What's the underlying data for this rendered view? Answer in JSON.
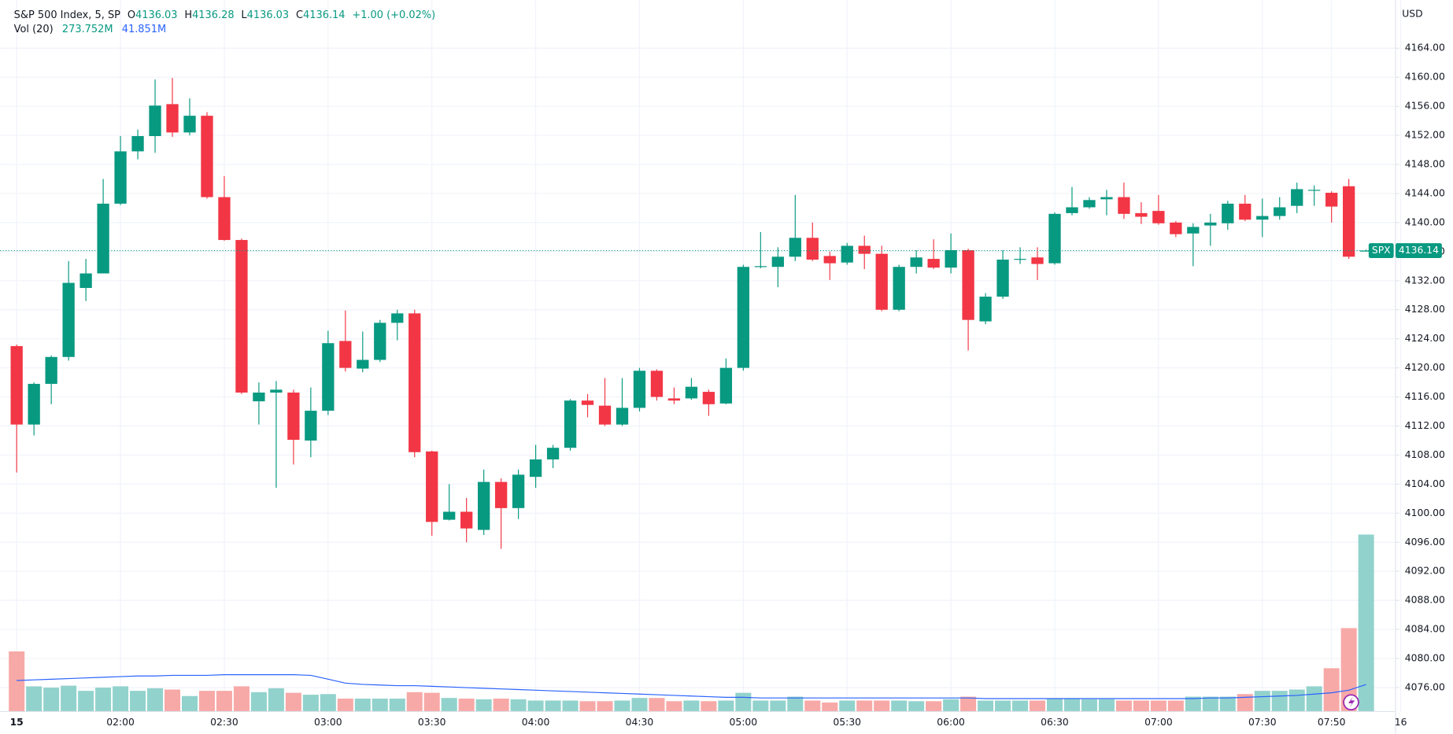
{
  "chart_data": {
    "type": "candlestick",
    "title": "S&P 500 Index, 5, SP",
    "ohlc_keys": [
      "O",
      "H",
      "L",
      "C"
    ],
    "change_label": "+1.00 (+0.02%)",
    "volume_title": "Vol (20)",
    "volume_label": "273.752M",
    "ma_label": "41.851M",
    "symbol": "SPX",
    "currency": "USD",
    "up_color": "#089981",
    "down_color": "#f23645",
    "up_volume_color": "#92d2cc",
    "down_volume_color": "#f7a9a7",
    "ma_color": "#2962ff",
    "grid": true,
    "series": {
      "open": [
        4123,
        4112.2,
        4117.8,
        4121.5,
        4131,
        4133,
        4142.6,
        4149.8,
        4151.9,
        4156.3,
        4152.4,
        4154.7,
        4143.5,
        4137.6,
        4115.4,
        4116.6,
        4116.6,
        4110,
        4114.1,
        4123.7,
        4119.9,
        4121.1,
        4126.2,
        4127.5,
        4108.5,
        4099.1,
        4100.2,
        4097.7,
        4104.3,
        4100.7,
        4105,
        4107.4,
        4109,
        4115.5,
        4114.8,
        4112.2,
        4114.5,
        4119.6,
        4115.8,
        4115.8,
        4116.7,
        4115.1,
        4120,
        4133.9,
        4133.9,
        4135.3,
        4137.9,
        4135.4,
        4134.5,
        4136.8,
        4135.7,
        4128,
        4133.9,
        4135,
        4133.8,
        4136.2,
        4126.4,
        4129.8,
        4134.9,
        4135.2,
        4134.4,
        4141.3,
        4142.1,
        4143.2,
        4143.5,
        4141.3,
        4141.6,
        4140,
        4138.5,
        4139.6,
        4139.9,
        4142.6,
        4140.4,
        4140.9,
        4142.3,
        4144.4,
        4144.1,
        4145,
        4136.03
      ],
      "high": [
        4123.2,
        4118,
        4121.7,
        4134.7,
        4135,
        4146,
        4151.9,
        4152.8,
        4159.7,
        4159.9,
        4157.1,
        4155.2,
        4146.4,
        4137.8,
        4118,
        4118.2,
        4117,
        4117.3,
        4125.1,
        4127.9,
        4125,
        4126.6,
        4128,
        4128,
        4108.6,
        4104,
        4102.1,
        4106,
        4104.8,
        4106,
        4109.4,
        4109.4,
        4115.7,
        4116.4,
        4118.6,
        4118.6,
        4120,
        4119.8,
        4117.3,
        4118.6,
        4117,
        4121.3,
        4134.2,
        4138.7,
        4136.6,
        4143.8,
        4140,
        4136,
        4137.2,
        4138.2,
        4136.8,
        4134.2,
        4136.2,
        4137.7,
        4138.5,
        4136.4,
        4130.3,
        4136.2,
        4136.6,
        4136.6,
        4141.4,
        4144.9,
        4143.5,
        4144.5,
        4145.5,
        4142.8,
        4143.8,
        4140.2,
        4139.9,
        4141.2,
        4143,
        4143.8,
        4143.3,
        4143.5,
        4145.5,
        4145.1,
        4144.3,
        4146,
        4136.28
      ],
      "low": [
        4105.6,
        4110.7,
        4115,
        4121,
        4129.2,
        4133,
        4142.4,
        4148.7,
        4149.6,
        4151.8,
        4152,
        4143.3,
        4137.5,
        4116.4,
        4112.2,
        4103.5,
        4106.7,
        4107.7,
        4113.5,
        4119.5,
        4119.4,
        4120.8,
        4123.8,
        4107.7,
        4096.9,
        4099,
        4096,
        4097,
        4095.1,
        4099.2,
        4103.5,
        4106.2,
        4108.6,
        4113.2,
        4112,
        4112,
        4114,
        4115.5,
        4115,
        4115.6,
        4113.4,
        4115,
        4119.6,
        4133.7,
        4131.1,
        4134.7,
        4134.7,
        4132.1,
        4134.2,
        4133.6,
        4127.8,
        4127.8,
        4133,
        4133.6,
        4133,
        4122.4,
        4126,
        4129.5,
        4134.3,
        4132.1,
        4134.2,
        4141,
        4141.9,
        4141,
        4140.5,
        4139.8,
        4139.7,
        4138,
        4134,
        4136.8,
        4139,
        4140.2,
        4138,
        4140.4,
        4141.3,
        4142.3,
        4140,
        4135,
        4136.03
      ],
      "close": [
        4112.2,
        4117.8,
        4121.5,
        4131.7,
        4133,
        4142.6,
        4149.8,
        4151.9,
        4156.1,
        4152.4,
        4154.7,
        4143.5,
        4137.6,
        4116.6,
        4116.6,
        4117,
        4110.1,
        4114.1,
        4123.4,
        4120,
        4121.1,
        4126.2,
        4127.5,
        4108.4,
        4098.8,
        4100.2,
        4097.9,
        4104.3,
        4100.7,
        4105.3,
        4107.4,
        4109,
        4115.5,
        4114.9,
        4112.2,
        4114.5,
        4119.6,
        4116,
        4115.5,
        4117.4,
        4115,
        4120,
        4133.9,
        4134,
        4135.3,
        4137.9,
        4134.9,
        4134.4,
        4136.8,
        4135.7,
        4128,
        4133.9,
        4135.2,
        4133.8,
        4136.2,
        4126.6,
        4129.8,
        4134.9,
        4135,
        4134.3,
        4141.2,
        4142.1,
        4143.1,
        4143.5,
        4141.2,
        4140.8,
        4139.9,
        4138.4,
        4139.4,
        4140,
        4142.6,
        4140.4,
        4140.9,
        4142.1,
        4144.6,
        4144.5,
        4142.2,
        4135.3,
        4136.14
      ],
      "volume": [
        93,
        39,
        37,
        40,
        32,
        37,
        39,
        32,
        36,
        34,
        24,
        32,
        32,
        39,
        30,
        36,
        29,
        26,
        27,
        20,
        20,
        20,
        20,
        30,
        29,
        21,
        20,
        19,
        20,
        19,
        17,
        17,
        17,
        16,
        16,
        17,
        21,
        21,
        16,
        17,
        16,
        17,
        29,
        17,
        17,
        23,
        17,
        14,
        17,
        17,
        17,
        17,
        16,
        16,
        19,
        23,
        17,
        17,
        17,
        17,
        20,
        20,
        19,
        19,
        17,
        17,
        17,
        17,
        23,
        23,
        23,
        27,
        32,
        32,
        34,
        39,
        67,
        129,
        273.752
      ],
      "volume_ma": [
        48,
        49,
        50,
        51,
        52,
        53,
        54,
        55,
        55,
        56,
        56,
        56,
        57,
        57,
        57,
        57,
        57,
        56,
        50,
        44,
        42,
        41,
        40,
        40,
        39,
        38,
        37,
        36,
        35,
        34,
        33,
        32,
        31,
        30,
        29,
        28,
        27,
        26,
        25,
        24,
        23,
        22,
        22,
        21,
        21,
        21,
        21,
        21,
        21,
        21,
        21,
        21,
        21,
        21,
        21,
        21,
        20,
        20,
        20,
        20,
        20,
        20,
        20,
        20,
        20,
        20,
        20,
        20,
        20,
        21,
        21,
        22,
        23,
        24,
        25,
        27,
        29,
        33,
        41.851
      ]
    },
    "ylim": [
      4072.7,
      4170.6
    ],
    "volume_ylim": [
      0,
      1100
    ],
    "yticks": [
      {
        "value": 4076,
        "label": "4076.00"
      },
      {
        "value": 4080,
        "label": "4080.00"
      },
      {
        "value": 4084,
        "label": "4084.00"
      },
      {
        "value": 4088,
        "label": "4088.00"
      },
      {
        "value": 4092,
        "label": "4092.00"
      },
      {
        "value": 4096,
        "label": "4096.00"
      },
      {
        "value": 4100,
        "label": "4100.00"
      },
      {
        "value": 4104,
        "label": "4104.00"
      },
      {
        "value": 4108,
        "label": "4108.00"
      },
      {
        "value": 4112,
        "label": "4112.00"
      },
      {
        "value": 4116,
        "label": "4116.00"
      },
      {
        "value": 4120,
        "label": "4120.00"
      },
      {
        "value": 4124,
        "label": "4124.00"
      },
      {
        "value": 4128,
        "label": "4128.00"
      },
      {
        "value": 4132,
        "label": "4132.00"
      },
      {
        "value": 4136,
        "label": "4136.00"
      },
      {
        "value": 4140,
        "label": "4140.00"
      },
      {
        "value": 4144,
        "label": "4144.00"
      },
      {
        "value": 4148,
        "label": "4148.00"
      },
      {
        "value": 4152,
        "label": "4152.00"
      },
      {
        "value": 4156,
        "label": "4156.00"
      },
      {
        "value": 4160,
        "label": "4160.00"
      },
      {
        "value": 4164,
        "label": "4164.00"
      }
    ],
    "xticks": [
      {
        "value": 0,
        "label": "15"
      },
      {
        "value": 6,
        "label": "02:00"
      },
      {
        "value": 12,
        "label": "02:30"
      },
      {
        "value": 18,
        "label": "03:00"
      },
      {
        "value": 24,
        "label": "03:30"
      },
      {
        "value": 30,
        "label": "04:00"
      },
      {
        "value": 36,
        "label": "04:30"
      },
      {
        "value": 42,
        "label": "05:00"
      },
      {
        "value": 48,
        "label": "05:30"
      },
      {
        "value": 54,
        "label": "06:00"
      },
      {
        "value": 60,
        "label": "06:30"
      },
      {
        "value": 66,
        "label": "07:00"
      },
      {
        "value": 72,
        "label": "07:30"
      },
      {
        "value": 76,
        "label": "07:50"
      },
      {
        "value": 80,
        "label": "16"
      }
    ]
  }
}
